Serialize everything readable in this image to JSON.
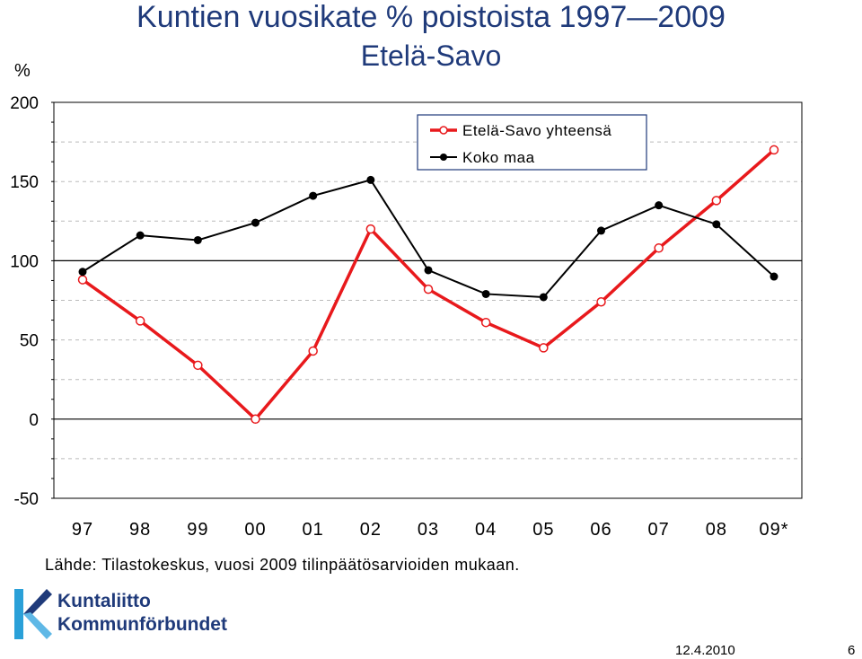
{
  "header": {
    "title": "Kuntien vuosikate % poistoista 1997—2009",
    "subtitle": "Etelä-Savo"
  },
  "chart_data": {
    "type": "line",
    "ylabel": "%",
    "ylim": [
      -50,
      200
    ],
    "yticks": [
      "200",
      "150",
      "100",
      "50",
      "0",
      "-50"
    ],
    "ytick_values": [
      200,
      150,
      100,
      50,
      0,
      -50
    ],
    "categories": [
      "97",
      "98",
      "99",
      "00",
      "01",
      "02",
      "03",
      "04",
      "05",
      "06",
      "07",
      "08",
      "09*"
    ],
    "series": [
      {
        "name": "Etelä-Savo yhteensä",
        "color": "#e8191c",
        "marker": "open-circle",
        "values": [
          88,
          62,
          34,
          0,
          43,
          120,
          82,
          61,
          45,
          74,
          108,
          138,
          170
        ]
      },
      {
        "name": "Koko maa",
        "color": "#000000",
        "marker": "filled-circle",
        "values": [
          93,
          116,
          113,
          124,
          141,
          151,
          94,
          79,
          77,
          119,
          135,
          123,
          90
        ]
      }
    ],
    "reference_lines": [
      100,
      0
    ],
    "grid": "horizontal-dashed",
    "legend_position": "top-right"
  },
  "footer": {
    "source": "Lähde: Tilastokeskus, vuosi 2009 tilinpäätösarvioiden mukaan.",
    "logo_line1": "Kuntaliitto",
    "logo_line2": "Kommunförbundet",
    "date": "12.4.2010",
    "page": "6"
  },
  "colors": {
    "title": "#1f3a7a",
    "logo": "#1f3a7a"
  }
}
